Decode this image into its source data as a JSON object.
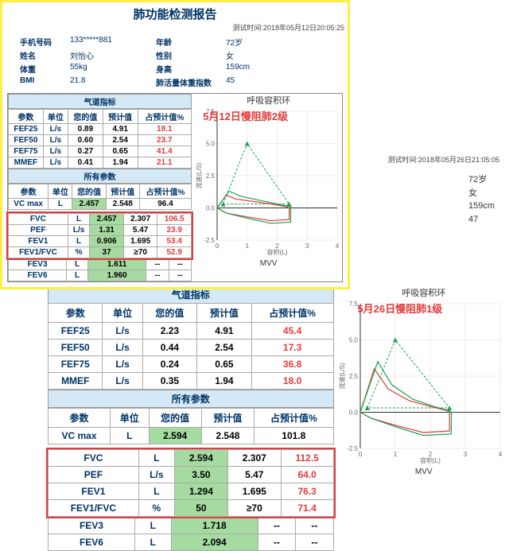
{
  "report1": {
    "title": "肺功能检测报告",
    "timestamp": "测试时间:2018年05月12日20:05:25",
    "meta": {
      "phone_l": "手机号码",
      "phone": "133*****881",
      "age_l": "年龄",
      "age": "72岁",
      "name_l": "姓名",
      "name": "刘怡心",
      "sex_l": "性别",
      "sex": "女",
      "weight_l": "体重",
      "weight": "55kg",
      "height_l": "身高",
      "height": "159cm",
      "bmi_l": "BMI",
      "bmi": "21.8",
      "lung_l": "肺活量体重指数",
      "lung": "45"
    },
    "sec1": "气道指标",
    "cols": [
      "参数",
      "单位",
      "您的值",
      "预计值",
      "占预计值%"
    ],
    "rows1": [
      {
        "p": "FEF25",
        "u": "L/s",
        "v": "0.89",
        "pred": "4.91",
        "pct": "18.1"
      },
      {
        "p": "FEF50",
        "u": "L/s",
        "v": "0.60",
        "pred": "2.54",
        "pct": "23.7"
      },
      {
        "p": "FEF75",
        "u": "L/s",
        "v": "0.27",
        "pred": "0.65",
        "pct": "41.4"
      },
      {
        "p": "MMEF",
        "u": "L/s",
        "v": "0.41",
        "pred": "1.94",
        "pct": "21.1"
      }
    ],
    "sec2": "所有参数",
    "row_vc": {
      "p": "VC max",
      "u": "L",
      "v": "2.457",
      "pred": "2.548",
      "pct": "96.4"
    },
    "rows2": [
      {
        "p": "FVC",
        "u": "L",
        "v": "2.457",
        "pred": "2.307",
        "pct": "106.5"
      },
      {
        "p": "PEF",
        "u": "L/s",
        "v": "1.31",
        "pred": "5.47",
        "pct": "23.9"
      },
      {
        "p": "FEV1",
        "u": "L",
        "v": "0.906",
        "pred": "1.695",
        "pct": "53.4"
      },
      {
        "p": "FEV1/FVC",
        "u": "%",
        "v": "37",
        "pred": "≥70",
        "pct": "52.9"
      }
    ],
    "rows3": [
      {
        "p": "FEV3",
        "u": "L",
        "v": "1.611",
        "pred": "--",
        "pct": "--"
      },
      {
        "p": "FEV6",
        "u": "L",
        "v": "1.960",
        "pred": "--",
        "pct": "--"
      }
    ],
    "annotation": "5月12日慢阻肺2级",
    "chart": {
      "title": "呼吸容积环",
      "xlabel": "容积(L)",
      "ylabel": "流速(L/S)",
      "xlim": [
        0,
        4
      ],
      "ylim": [
        -2.5,
        7.5
      ],
      "xticks": [
        0,
        1,
        2,
        3,
        4
      ],
      "yticks": [
        -2.5,
        0.0,
        2.5,
        5.0,
        7.5
      ],
      "triangle_color": "#1da04f",
      "triangle": [
        [
          0.2,
          0.3
        ],
        [
          1.0,
          5.0
        ],
        [
          2.4,
          0.3
        ]
      ],
      "curves": [
        {
          "color": "#e23b3b",
          "pts": [
            [
              0,
              0
            ],
            [
              0.3,
              1.0
            ],
            [
              0.6,
              0.7
            ],
            [
              1.2,
              0.5
            ],
            [
              1.8,
              0.3
            ],
            [
              2.3,
              0.1
            ],
            [
              2.4,
              0
            ],
            [
              2.4,
              -0.9
            ],
            [
              1.8,
              -1.0
            ],
            [
              1.0,
              -0.7
            ],
            [
              0.3,
              -0.4
            ],
            [
              0,
              0
            ]
          ]
        },
        {
          "color": "#1da04f",
          "pts": [
            [
              0,
              0
            ],
            [
              0.4,
              1.3
            ],
            [
              0.8,
              0.9
            ],
            [
              1.4,
              0.6
            ],
            [
              2.0,
              0.3
            ],
            [
              2.45,
              0.1
            ],
            [
              2.45,
              0
            ],
            [
              2.45,
              -1.1
            ],
            [
              1.8,
              -1.2
            ],
            [
              1.0,
              -0.8
            ],
            [
              0.3,
              -0.4
            ],
            [
              0,
              0
            ]
          ]
        }
      ],
      "mvv": "MVV"
    }
  },
  "report2": {
    "timestamp": "测试时间:2018年05月26日21:05:05",
    "meta": {
      "age": "72岁",
      "sex": "女",
      "height": "159cm",
      "lung": "47"
    },
    "sec1": "气道指标",
    "cols": [
      "参数",
      "单位",
      "您的值",
      "预计值",
      "占预计值%"
    ],
    "rows1": [
      {
        "p": "FEF25",
        "u": "L/s",
        "v": "2.23",
        "pred": "4.91",
        "pct": "45.4"
      },
      {
        "p": "FEF50",
        "u": "L/s",
        "v": "0.44",
        "pred": "2.54",
        "pct": "17.3"
      },
      {
        "p": "FEF75",
        "u": "L/s",
        "v": "0.24",
        "pred": "0.65",
        "pct": "36.8"
      },
      {
        "p": "MMEF",
        "u": "L/s",
        "v": "0.35",
        "pred": "1.94",
        "pct": "18.0"
      }
    ],
    "sec2": "所有参数",
    "row_vc": {
      "p": "VC max",
      "u": "L",
      "v": "2.594",
      "pred": "2.548",
      "pct": "101.8"
    },
    "rows2": [
      {
        "p": "FVC",
        "u": "L",
        "v": "2.594",
        "pred": "2.307",
        "pct": "112.5"
      },
      {
        "p": "PEF",
        "u": "L/s",
        "v": "3.50",
        "pred": "5.47",
        "pct": "64.0"
      },
      {
        "p": "FEV1",
        "u": "L",
        "v": "1.294",
        "pred": "1.695",
        "pct": "76.3"
      },
      {
        "p": "FEV1/FVC",
        "u": "%",
        "v": "50",
        "pred": "≥70",
        "pct": "71.4"
      }
    ],
    "rows3": [
      {
        "p": "FEV3",
        "u": "L",
        "v": "1.718",
        "pred": "--",
        "pct": "--"
      },
      {
        "p": "FEV6",
        "u": "L",
        "v": "2.094",
        "pred": "--",
        "pct": "--"
      }
    ],
    "annotation": "5月26日慢阻肺1级",
    "chart": {
      "title": "呼吸容积环",
      "xlabel": "容积(L)",
      "ylabel": "流速(L/S)",
      "xlim": [
        0,
        4
      ],
      "ylim": [
        -2.5,
        7.5
      ],
      "xticks": [
        0,
        1,
        2,
        3,
        4
      ],
      "yticks": [
        -2.5,
        0.0,
        2.5,
        5.0,
        7.5
      ],
      "triangle_color": "#1da04f",
      "triangle": [
        [
          0.2,
          0.3
        ],
        [
          1.0,
          5.0
        ],
        [
          2.55,
          0.3
        ]
      ],
      "curves": [
        {
          "color": "#e23b3b",
          "pts": [
            [
              0,
              0
            ],
            [
              0.4,
              3.0
            ],
            [
              0.8,
              1.6
            ],
            [
              1.4,
              0.8
            ],
            [
              2.0,
              0.4
            ],
            [
              2.5,
              0.1
            ],
            [
              2.55,
              0
            ],
            [
              2.55,
              -1.3
            ],
            [
              1.8,
              -1.4
            ],
            [
              1.0,
              -0.9
            ],
            [
              0.3,
              -0.4
            ],
            [
              0,
              0
            ]
          ]
        },
        {
          "color": "#1da04f",
          "pts": [
            [
              0,
              0
            ],
            [
              0.5,
              3.5
            ],
            [
              0.9,
              1.9
            ],
            [
              1.5,
              0.9
            ],
            [
              2.1,
              0.4
            ],
            [
              2.55,
              0.1
            ],
            [
              2.6,
              0
            ],
            [
              2.6,
              -1.5
            ],
            [
              1.8,
              -1.6
            ],
            [
              1.0,
              -1.0
            ],
            [
              0.3,
              -0.4
            ],
            [
              0,
              0
            ]
          ]
        }
      ],
      "mvv": "MVV"
    }
  }
}
